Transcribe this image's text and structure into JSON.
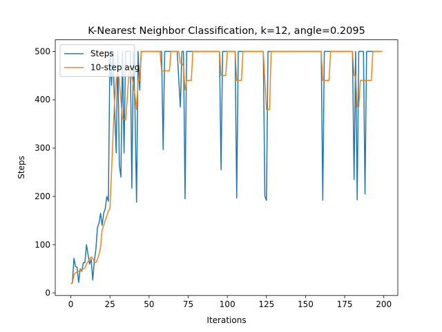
{
  "chart_data": {
    "type": "line",
    "title": "K-Nearest Neighbor Classification, k=12, angle=0.2095",
    "xlabel": "Iterations",
    "ylabel": "Steps",
    "x": [
      0,
      1,
      2,
      3,
      4,
      5,
      6,
      7,
      8,
      9,
      10,
      11,
      12,
      13,
      14,
      15,
      16,
      17,
      18,
      19,
      20,
      21,
      22,
      23,
      24,
      25,
      26,
      27,
      28,
      29,
      30,
      31,
      32,
      33,
      34,
      35,
      36,
      37,
      38,
      39,
      40,
      41,
      42,
      43,
      44,
      45,
      46,
      47,
      48,
      49,
      50,
      51,
      52,
      53,
      54,
      55,
      56,
      57,
      58,
      59,
      60,
      61,
      62,
      63,
      64,
      65,
      66,
      67,
      68,
      69,
      70,
      71,
      72,
      73,
      74,
      75,
      76,
      77,
      78,
      79,
      80,
      81,
      82,
      83,
      84,
      85,
      86,
      87,
      88,
      89,
      90,
      91,
      92,
      93,
      94,
      95,
      96,
      97,
      98,
      99,
      100,
      101,
      102,
      103,
      104,
      105,
      106,
      107,
      108,
      109,
      110,
      111,
      112,
      113,
      114,
      115,
      116,
      117,
      118,
      119,
      120,
      121,
      122,
      123,
      124,
      125,
      126,
      127,
      128,
      129,
      130,
      131,
      132,
      133,
      134,
      135,
      136,
      137,
      138,
      139,
      140,
      141,
      142,
      143,
      144,
      145,
      146,
      147,
      148,
      149,
      150,
      151,
      152,
      153,
      154,
      155,
      156,
      157,
      158,
      159,
      160,
      161,
      162,
      163,
      164,
      165,
      166,
      167,
      168,
      169,
      170,
      171,
      172,
      173,
      174,
      175,
      176,
      177,
      178,
      179,
      180,
      181,
      182,
      183,
      184,
      185,
      186,
      187,
      188,
      189,
      190,
      191,
      192,
      193,
      194,
      195,
      196,
      197,
      198,
      199
    ],
    "series": [
      {
        "name": "Steps",
        "color": "#1f77b4",
        "values": [
          20,
          21,
          72,
          55,
          53,
          22,
          50,
          45,
          63,
          63,
          100,
          80,
          60,
          70,
          27,
          65,
          90,
          135,
          145,
          165,
          140,
          165,
          175,
          200,
          190,
          500,
          430,
          500,
          380,
          290,
          500,
          265,
          240,
          500,
          290,
          500,
          500,
          500,
          500,
          217,
          500,
          380,
          188,
          500,
          420,
          500,
          500,
          500,
          500,
          500,
          500,
          500,
          500,
          500,
          500,
          500,
          500,
          500,
          500,
          297,
          500,
          500,
          500,
          500,
          500,
          500,
          500,
          500,
          500,
          440,
          385,
          500,
          500,
          195,
          500,
          500,
          500,
          500,
          500,
          500,
          500,
          500,
          500,
          500,
          500,
          500,
          500,
          500,
          500,
          500,
          500,
          500,
          500,
          500,
          500,
          500,
          255,
          500,
          500,
          500,
          500,
          500,
          500,
          500,
          500,
          500,
          197,
          500,
          500,
          500,
          500,
          500,
          500,
          500,
          500,
          500,
          500,
          500,
          500,
          500,
          500,
          500,
          500,
          500,
          200,
          192,
          500,
          500,
          500,
          500,
          500,
          500,
          500,
          500,
          500,
          500,
          500,
          500,
          500,
          500,
          500,
          500,
          500,
          500,
          500,
          500,
          500,
          500,
          500,
          500,
          500,
          500,
          500,
          500,
          500,
          500,
          500,
          500,
          500,
          500,
          500,
          192,
          500,
          500,
          500,
          500,
          500,
          500,
          500,
          500,
          500,
          500,
          500,
          500,
          500,
          500,
          500,
          500,
          500,
          500,
          500,
          235,
          500,
          193,
          500,
          500,
          500,
          500,
          205,
          500,
          500,
          500,
          500,
          500,
          500,
          500,
          500,
          500,
          500,
          500
        ]
      },
      {
        "name": "10-step avg",
        "color": "#ff7f0e",
        "values": [
          20,
          20,
          38,
          42,
          44,
          45,
          47,
          48,
          50,
          52,
          60,
          65,
          70,
          75,
          72,
          65,
          63,
          70,
          80,
          95,
          130,
          140,
          150,
          160,
          170,
          175,
          250,
          330,
          400,
          440,
          460,
          440,
          400,
          360,
          360,
          358,
          400,
          450,
          470,
          450,
          430,
          410,
          380,
          440,
          440,
          500,
          500,
          500,
          500,
          500,
          500,
          500,
          500,
          500,
          500,
          500,
          500,
          500,
          460,
          460,
          460,
          460,
          460,
          460,
          500,
          500,
          500,
          500,
          500,
          500,
          475,
          475,
          470,
          420,
          440,
          440,
          440,
          440,
          500,
          500,
          500,
          500,
          500,
          500,
          500,
          500,
          500,
          500,
          500,
          500,
          500,
          500,
          500,
          500,
          500,
          500,
          450,
          450,
          450,
          450,
          500,
          500,
          500,
          500,
          500,
          500,
          440,
          440,
          440,
          440,
          500,
          500,
          500,
          500,
          500,
          500,
          500,
          500,
          500,
          500,
          500,
          500,
          500,
          500,
          440,
          380,
          380,
          380,
          500,
          500,
          500,
          500,
          500,
          500,
          500,
          500,
          500,
          500,
          500,
          500,
          500,
          500,
          500,
          500,
          500,
          500,
          500,
          500,
          500,
          500,
          500,
          500,
          500,
          500,
          500,
          500,
          500,
          500,
          500,
          500,
          500,
          440,
          440,
          440,
          440,
          440,
          500,
          500,
          500,
          500,
          500,
          500,
          500,
          500,
          500,
          500,
          500,
          500,
          500,
          500,
          500,
          450,
          450,
          385,
          385,
          440,
          440,
          440,
          440,
          440,
          440,
          440,
          440,
          500,
          500,
          500,
          500,
          500,
          500,
          500
        ]
      }
    ],
    "xlim": [
      -9.95,
      208.95
    ],
    "xticks": [
      0,
      25,
      50,
      75,
      100,
      125,
      150,
      175,
      200
    ],
    "ylim": [
      -5,
      524
    ],
    "yticks": [
      0,
      100,
      200,
      300,
      400,
      500
    ],
    "legend": "upper left"
  }
}
